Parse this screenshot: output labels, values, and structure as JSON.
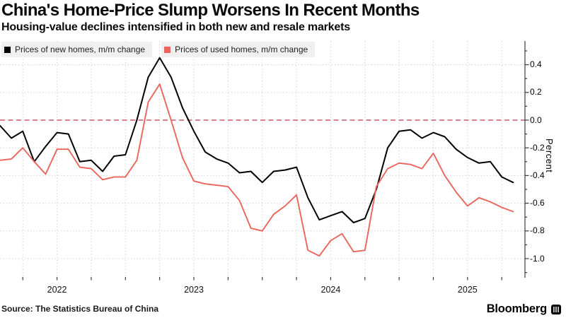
{
  "header": {
    "title": "China's Home-Price Slump Worsens In Recent Months",
    "subtitle": "Housing-value declines intensified in both new and resale markets"
  },
  "legend": [
    {
      "label": "Prices of new homes, m/m change",
      "color": "#000000"
    },
    {
      "label": "Prices of used homes, m/m change",
      "color": "#ec655c"
    }
  ],
  "footer": {
    "source": "Source: The Statistics Bureau of China",
    "brand": "Bloomberg"
  },
  "chart_data": {
    "type": "line",
    "title": "China's Home-Price Slump Worsens In Recent Months",
    "subtitle": "Housing-value declines intensified in both new and resale markets",
    "xlabel": "",
    "ylabel": "Percent",
    "ylim": [
      -1.1,
      0.5
    ],
    "grid": "dotted",
    "legend_position": "top-left",
    "zero_line": {
      "value": 0.0,
      "color": "#c13a4c",
      "style": "dashed"
    },
    "yticks": [
      "0.4",
      "0.2",
      "0.0",
      "-0.2",
      "-0.4",
      "-0.6",
      "-0.8",
      "-1.0"
    ],
    "xticks": [
      "2022",
      "2023",
      "2024",
      "2025"
    ],
    "categories": [
      "2022-01",
      "2022-02",
      "2022-03",
      "2022-04",
      "2022-05",
      "2022-06",
      "2022-07",
      "2022-08",
      "2022-09",
      "2022-10",
      "2022-11",
      "2022-12",
      "2023-01",
      "2023-02",
      "2023-03",
      "2023-04",
      "2023-05",
      "2023-06",
      "2023-07",
      "2023-08",
      "2023-09",
      "2023-10",
      "2023-11",
      "2023-12",
      "2024-01",
      "2024-02",
      "2024-03",
      "2024-04",
      "2024-05",
      "2024-06",
      "2024-07",
      "2024-08",
      "2024-09",
      "2024-10",
      "2024-11",
      "2024-12",
      "2025-01",
      "2025-02",
      "2025-03",
      "2025-04",
      "2025-05",
      "2025-06",
      "2025-07",
      "2025-08",
      "2025-09",
      "2025-10"
    ],
    "series": [
      {
        "name": "Prices of new homes, m/m change",
        "color": "#000000",
        "values": [
          -0.04,
          -0.13,
          -0.08,
          -0.3,
          -0.19,
          -0.09,
          -0.1,
          -0.3,
          -0.29,
          -0.37,
          -0.26,
          -0.25,
          0.0,
          0.31,
          0.45,
          0.31,
          0.09,
          -0.08,
          -0.23,
          -0.28,
          -0.31,
          -0.38,
          -0.37,
          -0.45,
          -0.37,
          -0.36,
          -0.34,
          -0.56,
          -0.72,
          -0.69,
          -0.66,
          -0.74,
          -0.71,
          -0.5,
          -0.2,
          -0.08,
          -0.07,
          -0.13,
          -0.09,
          -0.12,
          -0.21,
          -0.27,
          -0.31,
          -0.3,
          -0.41,
          -0.45
        ]
      },
      {
        "name": "Prices of used homes, m/m change",
        "color": "#ec655c",
        "values": [
          -0.29,
          -0.28,
          -0.2,
          -0.3,
          -0.39,
          -0.21,
          -0.21,
          -0.34,
          -0.35,
          -0.43,
          -0.41,
          -0.41,
          -0.29,
          0.13,
          0.26,
          0.0,
          -0.27,
          -0.44,
          -0.46,
          -0.47,
          -0.48,
          -0.58,
          -0.78,
          -0.8,
          -0.68,
          -0.62,
          -0.54,
          -0.94,
          -0.98,
          -0.87,
          -0.82,
          -0.95,
          -0.94,
          -0.48,
          -0.35,
          -0.31,
          -0.32,
          -0.35,
          -0.24,
          -0.4,
          -0.52,
          -0.62,
          -0.56,
          -0.59,
          -0.63,
          -0.66
        ]
      }
    ]
  }
}
